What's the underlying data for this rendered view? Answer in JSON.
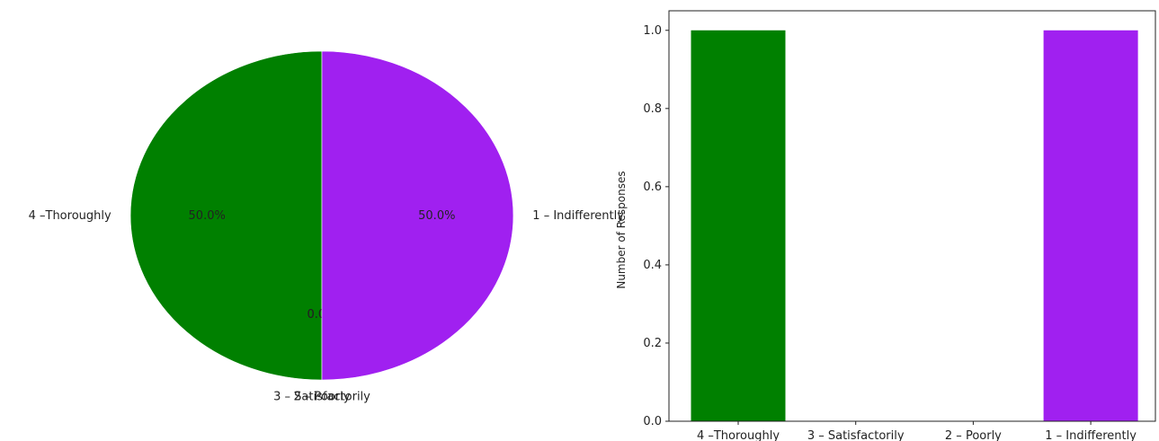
{
  "chart_data": [
    {
      "type": "pie",
      "categories": [
        "4 –Thoroughly",
        "3 – Satisfactorily",
        "2 – Poorly",
        "1 – Indifferently"
      ],
      "values": [
        1,
        0,
        0,
        1
      ],
      "percent_labels": [
        "50.0%",
        "0.0%",
        "0.0%",
        "50.0%"
      ],
      "colors": [
        "#008000",
        "#1f77b4",
        "#ff7f0e",
        "#a020f0"
      ]
    },
    {
      "type": "bar",
      "categories": [
        "4 –Thoroughly",
        "3 – Satisfactorily",
        "2 – Poorly",
        "1 – Indifferently"
      ],
      "values": [
        1,
        0,
        0,
        1
      ],
      "ylabel": "Number of Responses",
      "xlabel": "",
      "ylim": [
        0,
        1.05
      ],
      "yticks": [
        "0.0",
        "0.2",
        "0.4",
        "0.6",
        "0.8",
        "1.0"
      ],
      "colors": [
        "#008000",
        "#1f77b4",
        "#ff7f0e",
        "#a020f0"
      ],
      "grid": false
    }
  ]
}
